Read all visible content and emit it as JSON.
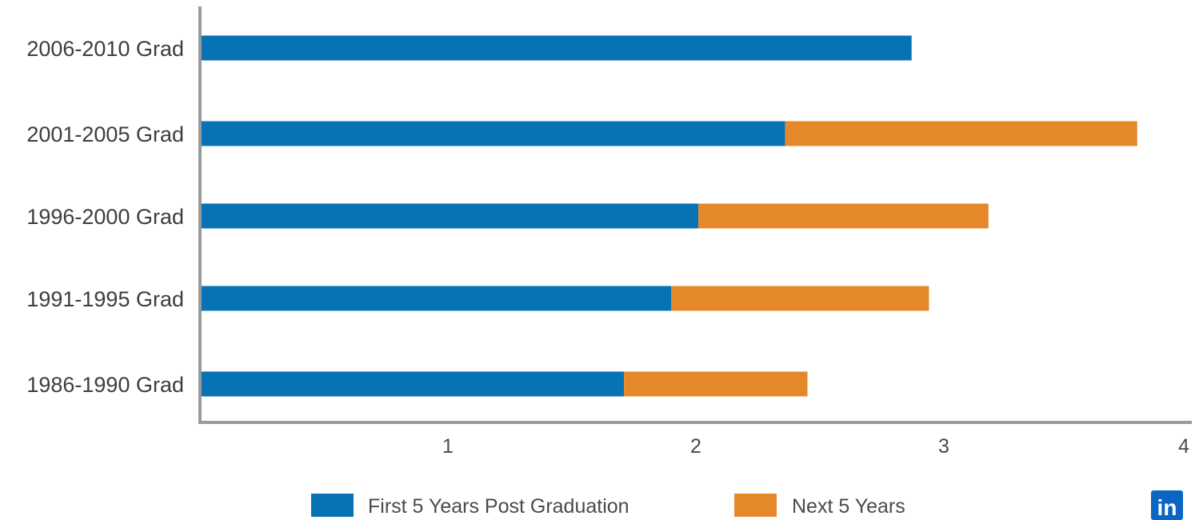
{
  "chart_data": {
    "type": "bar",
    "orientation": "horizontal",
    "stacked": true,
    "categories": [
      "2006-2010 Grad",
      "2001-2005 Grad",
      "1996-2000 Grad",
      "1991-1995 Grad",
      "1986-1990 Grad"
    ],
    "series": [
      {
        "name": "First 5 Years Post Graduation",
        "color": "#0773b4",
        "values": [
          2.87,
          2.36,
          2.01,
          1.9,
          1.71
        ]
      },
      {
        "name": "Next 5 Years",
        "color": "#e5882a",
        "values": [
          0,
          1.42,
          1.17,
          1.04,
          0.74
        ]
      }
    ],
    "xticks": [
      "1",
      "2",
      "3",
      "4"
    ],
    "xlim": [
      0,
      4
    ],
    "grid": false,
    "legend_position": "bottom"
  },
  "watermark": {
    "logo_text": "in",
    "logo_color": "#0a66c2",
    "icon": "linkedin-logo-icon"
  }
}
